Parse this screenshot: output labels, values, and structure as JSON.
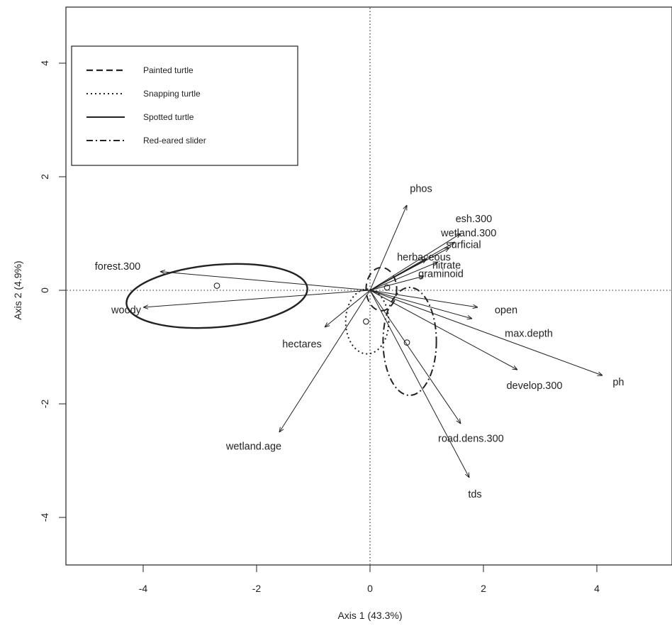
{
  "chart_data": {
    "type": "scatter",
    "title": "",
    "xlabel": "Axis 1 (43.3%)",
    "ylabel": "Axis 2 (4.9%)",
    "xlim": [
      -5.3,
      5.3
    ],
    "ylim": [
      -4.9,
      4.9
    ],
    "xticks": [
      -4,
      -2,
      0,
      2,
      4
    ],
    "yticks": [
      -4,
      -2,
      0,
      2,
      4
    ],
    "xtick_labels": [
      "-4",
      "-2",
      "0",
      "2",
      "4"
    ],
    "ytick_labels": [
      "-4",
      "-2",
      "0",
      "2",
      "4"
    ],
    "grid": false,
    "reference_lines": [
      {
        "axis": "x",
        "value": 0,
        "style": "dotted"
      },
      {
        "axis": "y",
        "value": 0,
        "style": "dotted"
      }
    ],
    "legend": {
      "position": "top-left",
      "entries": [
        {
          "label": "Painted turtle",
          "line_style": "dashed"
        },
        {
          "label": "Snapping turtle",
          "line_style": "dotted"
        },
        {
          "label": "Spotted turtle",
          "line_style": "solid"
        },
        {
          "label": "Red-eared slider",
          "line_style": "dotdash"
        }
      ]
    },
    "vectors": [
      {
        "name": "phos",
        "x": 0.65,
        "y": 1.5,
        "label_x": 0.9,
        "label_y": 1.78
      },
      {
        "name": "esh.300",
        "x": 1.6,
        "y": 1.0,
        "label_x": 1.83,
        "label_y": 1.25
      },
      {
        "name": "wetland.300",
        "x": 1.5,
        "y": 0.85,
        "label_x": 1.74,
        "label_y": 1.0
      },
      {
        "name": "surficial",
        "x": 1.4,
        "y": 0.75,
        "label_x": 1.65,
        "label_y": 0.79
      },
      {
        "name": "herbaceous",
        "x": 1.0,
        "y": 0.55,
        "label_x": 0.95,
        "label_y": 0.57
      },
      {
        "name": "nitrate",
        "x": 1.2,
        "y": 0.5,
        "label_x": 1.35,
        "label_y": 0.43
      },
      {
        "name": "graminoid",
        "x": 0.95,
        "y": 0.25,
        "label_x": 1.25,
        "label_y": 0.28
      },
      {
        "name": "forest.300",
        "x": -3.7,
        "y": 0.33,
        "label_x": -4.45,
        "label_y": 0.41
      },
      {
        "name": "woody",
        "x": -4.0,
        "y": -0.3,
        "label_x": -4.3,
        "label_y": -0.36
      },
      {
        "name": "hectares",
        "x": -0.8,
        "y": -0.65,
        "label_x": -1.2,
        "label_y": -0.96
      },
      {
        "name": "open",
        "x": 1.9,
        "y": -0.3,
        "label_x": 2.4,
        "label_y": -0.36
      },
      {
        "name": "max.depth",
        "x": 1.8,
        "y": -0.5,
        "label_x": 2.8,
        "label_y": -0.77
      },
      {
        "name": "develop.300",
        "x": 2.6,
        "y": -1.4,
        "label_x": 2.9,
        "label_y": -1.69
      },
      {
        "name": "ph",
        "x": 4.1,
        "y": -1.5,
        "label_x": 4.38,
        "label_y": -1.63
      },
      {
        "name": "wetland.age",
        "x": -1.6,
        "y": -2.5,
        "label_x": -2.05,
        "label_y": -2.76
      },
      {
        "name": "road.dens.300",
        "x": 1.6,
        "y": -2.35,
        "label_x": 1.78,
        "label_y": -2.62
      },
      {
        "name": "tds",
        "x": 1.75,
        "y": -3.3,
        "label_x": 1.85,
        "label_y": -3.6
      }
    ],
    "centroids": [
      {
        "group": "Spotted turtle",
        "x": -2.7,
        "y": 0.08
      },
      {
        "group": "Snapping turtle",
        "x": -0.07,
        "y": -0.55
      },
      {
        "group": "Red-eared slider",
        "x": 0.65,
        "y": -0.92
      },
      {
        "group": "Painted turtle",
        "x": 0.3,
        "y": 0.05
      }
    ],
    "ellipses": [
      {
        "group": "Spotted turtle",
        "cx": -2.7,
        "cy": -0.1,
        "rx": 1.6,
        "ry": 0.55,
        "rotation_deg": -5,
        "line_style": "solid"
      },
      {
        "group": "Snapping turtle",
        "cx": -0.05,
        "cy": -0.55,
        "rx": 0.38,
        "ry": 0.57,
        "rotation_deg": 0,
        "line_style": "dotted"
      },
      {
        "group": "Red-eared slider",
        "cx": 0.7,
        "cy": -0.9,
        "rx": 0.47,
        "ry": 0.95,
        "rotation_deg": 0,
        "line_style": "dotdash"
      },
      {
        "group": "Painted turtle",
        "cx": 0.2,
        "cy": 0.02,
        "rx": 0.27,
        "ry": 0.38,
        "rotation_deg": 0,
        "line_style": "dashed"
      }
    ]
  }
}
